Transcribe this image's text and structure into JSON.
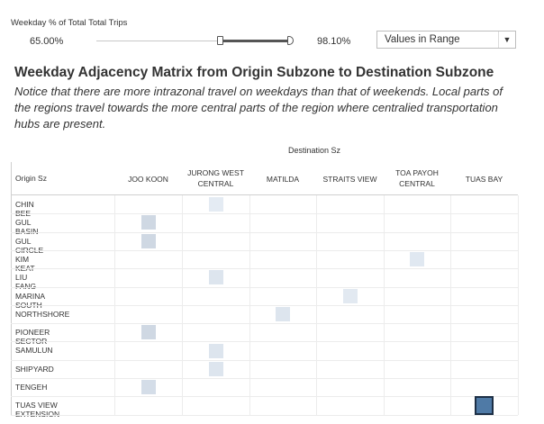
{
  "filter": {
    "title": "Weekday % of Total Total Trips",
    "min_label": "65.00%",
    "max_label": "98.10%",
    "slider_range": [
      0.629,
      1.0
    ],
    "dropdown_value": "Values in Range",
    "dropdown_caret": "▼"
  },
  "title": "Weekday Adjacency Matrix from Origin Subzone to Destination Subzone",
  "subtitle": "Notice that there are more intrazonal travel on weekdays than that of weekends.  Local parts of the regions travel towards the more central parts of the region where centralied transportation hubs are present.",
  "matrix": {
    "destination_header": "Destination Sz",
    "origin_header": "Origin Sz",
    "columns": [
      "JOO KOON",
      "JURONG WEST\nCENTRAL",
      "MATILDA",
      "STRAITS VIEW",
      "TOA PAYOH\nCENTRAL",
      "TUAS BAY"
    ],
    "rows": [
      "CHIN BEE",
      "GUL BASIN",
      "GUL CIRCLE",
      "KIM KEAT",
      "LIU FANG",
      "MARINA SOUTH",
      "NORTHSHORE",
      "PIONEER SECTOR",
      "SAMULUN",
      "SHIPYARD",
      "TENGEH",
      "TUAS VIEW EXTENSION"
    ],
    "cells": [
      {
        "row": 0,
        "col": 1,
        "color": "#e4ebf3"
      },
      {
        "row": 1,
        "col": 0,
        "color": "#cfd8e3"
      },
      {
        "row": 2,
        "col": 0,
        "color": "#cfd8e3"
      },
      {
        "row": 3,
        "col": 4,
        "color": "#e0e8f1"
      },
      {
        "row": 4,
        "col": 1,
        "color": "#dde5ee"
      },
      {
        "row": 5,
        "col": 3,
        "color": "#e2e9f1"
      },
      {
        "row": 6,
        "col": 2,
        "color": "#dde5ee"
      },
      {
        "row": 7,
        "col": 0,
        "color": "#cfd8e3"
      },
      {
        "row": 8,
        "col": 1,
        "color": "#dde5ee"
      },
      {
        "row": 9,
        "col": 1,
        "color": "#dde5ee"
      },
      {
        "row": 10,
        "col": 0,
        "color": "#d4dde8"
      },
      {
        "row": 11,
        "col": 5,
        "color": "#4f7aa6",
        "border": "#1d2f45"
      }
    ]
  }
}
